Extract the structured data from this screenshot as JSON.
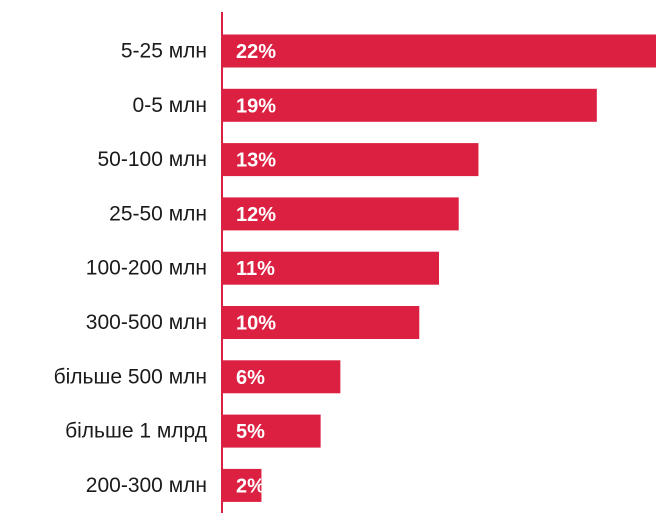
{
  "chart_data": {
    "type": "bar",
    "orientation": "horizontal",
    "categories": [
      "5-25 млн",
      "0-5 млн",
      "50-100 млн",
      "25-50 млн",
      "100-200 млн",
      "300-500 млн",
      "більше 500 млн",
      "більше 1 млрд",
      "200-300 млн"
    ],
    "values": [
      22,
      19,
      13,
      12,
      11,
      10,
      6,
      5,
      2
    ],
    "value_labels": [
      "22%",
      "19%",
      "13%",
      "12%",
      "11%",
      "10%",
      "6%",
      "5%",
      "2%"
    ],
    "title": "",
    "xlabel": "",
    "ylabel": "",
    "xlim": [
      0,
      22
    ],
    "grid": false,
    "legend": "none",
    "colors": {
      "bar": "#dc2041",
      "axis": "#dc2041",
      "label": "#1a1a1a",
      "value_label": "#ffffff"
    }
  }
}
